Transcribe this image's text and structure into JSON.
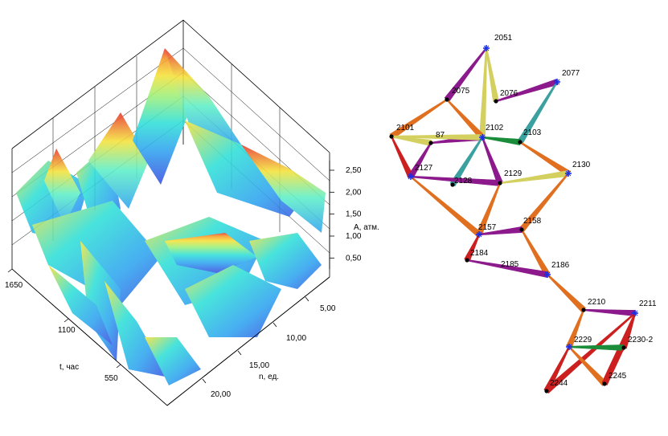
{
  "surface_plot": {
    "t_axis_label": "t, час",
    "n_axis_label": "n, ед.",
    "a_axis_label": "A, атм.",
    "t_ticks": [
      {
        "label": "1650",
        "value": 1650
      },
      {
        "label": "1100",
        "value": 1100
      },
      {
        "label": "550",
        "value": 550
      }
    ],
    "n_ticks": [
      {
        "label": "5,00",
        "value": 5
      },
      {
        "label": "10,00",
        "value": 10
      },
      {
        "label": "15,00",
        "value": 15
      },
      {
        "label": "20,00",
        "value": 20
      }
    ],
    "a_ticks": [
      {
        "label": "0,50",
        "value": 0.5
      },
      {
        "label": "1,00",
        "value": 1.0
      },
      {
        "label": "1,50",
        "value": 1.5
      },
      {
        "label": "2,00",
        "value": 2.0
      },
      {
        "label": "2,50",
        "value": 2.5
      }
    ],
    "colormap": [
      "#3a4fe0",
      "#2fa3f0",
      "#2fe0d8",
      "#9ef07a",
      "#f5e23a",
      "#f59a2a",
      "#e8332a"
    ]
  },
  "network": {
    "nodes": [
      {
        "id": "2051",
        "label": "2051",
        "marker": "star"
      },
      {
        "id": "2077",
        "label": "2077",
        "marker": "star"
      },
      {
        "id": "2075",
        "label": "2075",
        "marker": "dot"
      },
      {
        "id": "2076",
        "label": "2076",
        "marker": "dot"
      },
      {
        "id": "2101",
        "label": "2101",
        "marker": "dot"
      },
      {
        "id": "87",
        "label": "87",
        "marker": "dot"
      },
      {
        "id": "2102",
        "label": "2102",
        "marker": "star"
      },
      {
        "id": "2103",
        "label": "2103",
        "marker": "dot"
      },
      {
        "id": "2127",
        "label": "2127",
        "marker": "star"
      },
      {
        "id": "2128",
        "label": "2128",
        "marker": "dot"
      },
      {
        "id": "2129",
        "label": "2129",
        "marker": "dot"
      },
      {
        "id": "2130",
        "label": "2130",
        "marker": "star"
      },
      {
        "id": "2157",
        "label": "2157",
        "marker": "star"
      },
      {
        "id": "2158",
        "label": "2158",
        "marker": "dot"
      },
      {
        "id": "2184",
        "label": "2184",
        "marker": "dot"
      },
      {
        "id": "2185",
        "label": "2185",
        "marker": "none"
      },
      {
        "id": "2186",
        "label": "2186",
        "marker": "star"
      },
      {
        "id": "2210",
        "label": "2210",
        "marker": "dot"
      },
      {
        "id": "2211",
        "label": "2211",
        "marker": "star"
      },
      {
        "id": "2229",
        "label": "2229",
        "marker": "star"
      },
      {
        "id": "2230-2",
        "label": "2230-2",
        "marker": "dot"
      },
      {
        "id": "2245",
        "label": "2245",
        "marker": "dot"
      },
      {
        "id": "2244",
        "label": "2244",
        "marker": "dot"
      }
    ],
    "edges": [
      {
        "from": "2051",
        "to": "2075",
        "color": "#8c1a8c"
      },
      {
        "from": "2051",
        "to": "2076",
        "color": "#d4d060"
      },
      {
        "from": "2051",
        "to": "2102",
        "color": "#d4d060"
      },
      {
        "from": "2075",
        "to": "2101",
        "color": "#e07020"
      },
      {
        "from": "2075",
        "to": "2102",
        "color": "#e07020"
      },
      {
        "from": "2076",
        "to": "2077",
        "color": "#8c1a8c"
      },
      {
        "from": "2077",
        "to": "2103",
        "color": "#3aa0a0"
      },
      {
        "from": "2101",
        "to": "87",
        "color": "#d4d060"
      },
      {
        "from": "2101",
        "to": "2127",
        "color": "#cc2020"
      },
      {
        "from": "87",
        "to": "2127",
        "color": "#8c1a8c"
      },
      {
        "from": "87",
        "to": "2102",
        "color": "#8c1a8c"
      },
      {
        "from": "2101",
        "to": "2102",
        "color": "#d4d060"
      },
      {
        "from": "2102",
        "to": "2103",
        "color": "#1a8c3a"
      },
      {
        "from": "2102",
        "to": "2128",
        "color": "#3aa0a0"
      },
      {
        "from": "2102",
        "to": "2129",
        "color": "#8c1a8c"
      },
      {
        "from": "2127",
        "to": "2157",
        "color": "#e07020"
      },
      {
        "from": "2127",
        "to": "2129",
        "color": "#8c1a8c"
      },
      {
        "from": "2103",
        "to": "2130",
        "color": "#e07020"
      },
      {
        "from": "2129",
        "to": "2130",
        "color": "#d4d060"
      },
      {
        "from": "2130",
        "to": "2158",
        "color": "#e07020"
      },
      {
        "from": "2129",
        "to": "2157",
        "color": "#e07020"
      },
      {
        "from": "2157",
        "to": "2158",
        "color": "#8c1a8c"
      },
      {
        "from": "2157",
        "to": "2184",
        "color": "#cc2020"
      },
      {
        "from": "2158",
        "to": "2186",
        "color": "#e07020"
      },
      {
        "from": "2184",
        "to": "2186",
        "color": "#8c1a8c"
      },
      {
        "from": "2186",
        "to": "2210",
        "color": "#e07020"
      },
      {
        "from": "2210",
        "to": "2211",
        "color": "#8c1a8c"
      },
      {
        "from": "2210",
        "to": "2229",
        "color": "#e07020"
      },
      {
        "from": "2211",
        "to": "2230-2",
        "color": "#cc2020"
      },
      {
        "from": "2211",
        "to": "2244",
        "color": "#cc2020"
      },
      {
        "from": "2211",
        "to": "2245",
        "color": "#cc2020"
      },
      {
        "from": "2229",
        "to": "2230-2",
        "color": "#1a8c3a"
      },
      {
        "from": "2229",
        "to": "2244",
        "color": "#cc2020"
      },
      {
        "from": "2229",
        "to": "2245",
        "color": "#e07020"
      },
      {
        "from": "2230-2",
        "to": "2245",
        "color": "#cc2020"
      }
    ]
  }
}
